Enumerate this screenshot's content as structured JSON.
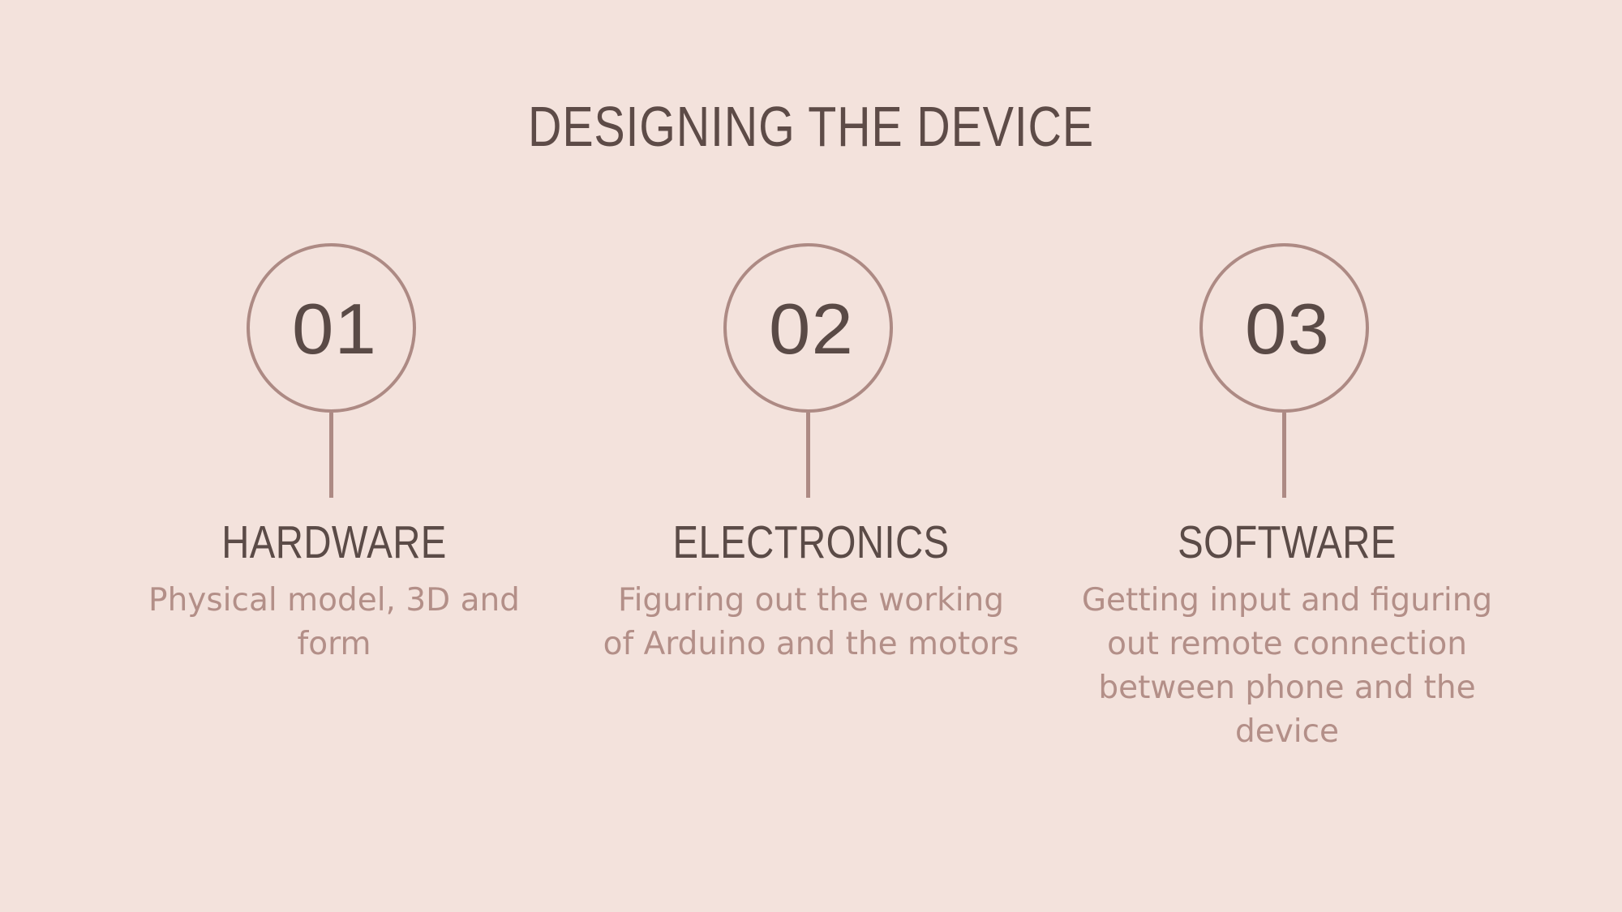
{
  "title": "DESIGNING THE DEVICE",
  "steps": [
    {
      "number": "01",
      "label": "HARDWARE",
      "description": "Physical model, 3D and form"
    },
    {
      "number": "02",
      "label": "ELECTRONICS",
      "description": "Figuring out the working of Arduino and the motors"
    },
    {
      "number": "03",
      "label": "SOFTWARE",
      "description": "Getting input and figuring out remote connection between phone and the device"
    }
  ],
  "colors": {
    "background": "#f3e2dc",
    "heading": "#5d4b47",
    "accent": "#ad8a84",
    "description": "#b38f88"
  }
}
